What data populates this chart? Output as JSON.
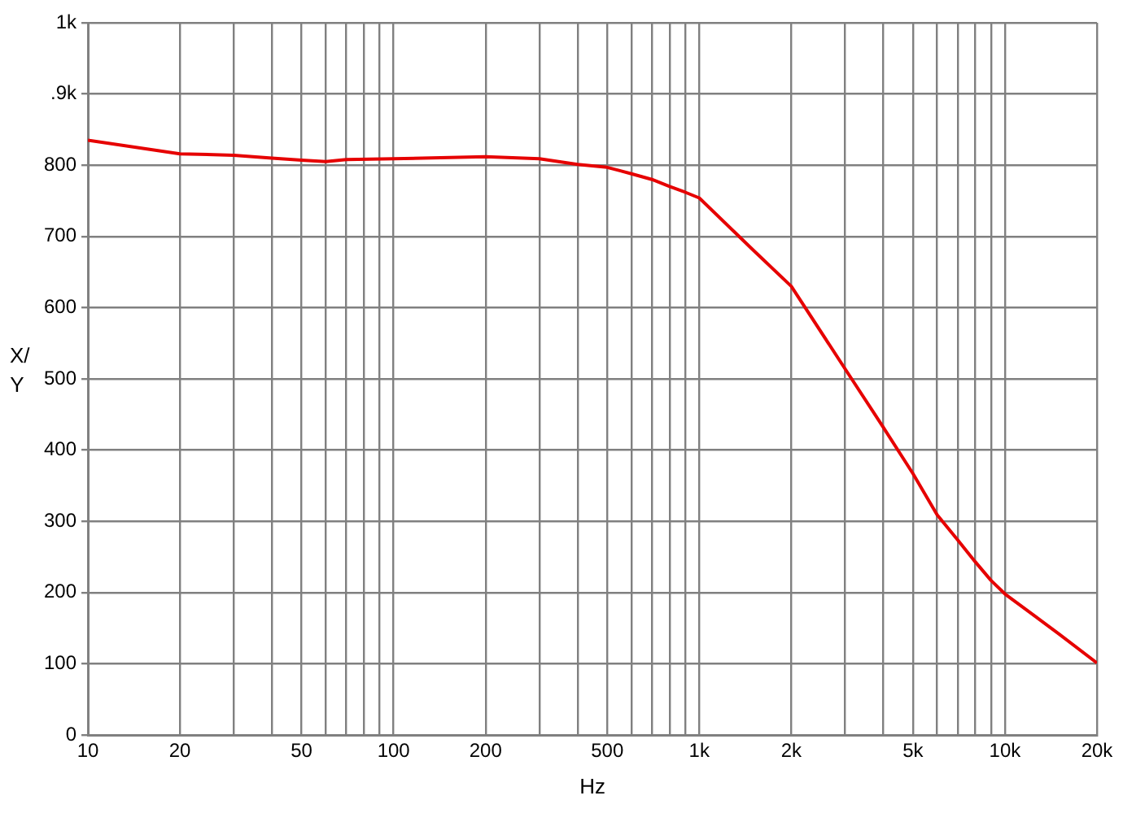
{
  "chart_data": {
    "type": "line",
    "xlabel": "Hz",
    "ylabel": "X/Y",
    "log": "x",
    "x": [
      10,
      20,
      30,
      40,
      50,
      60,
      70,
      100,
      200,
      300,
      400,
      500,
      600,
      700,
      800,
      900,
      1000,
      1500,
      2000,
      3000,
      4000,
      5000,
      6000,
      7000,
      8000,
      9000,
      10000,
      15000,
      20000
    ],
    "series": [
      {
        "color": "#e60000",
        "values": [
          835,
          816,
          814,
          810,
          807,
          805,
          808,
          809,
          812,
          809,
          801,
          797,
          788,
          780,
          770,
          762,
          754,
          681,
          630,
          514,
          432,
          367,
          309,
          274,
          243,
          217,
          198,
          142,
          101
        ]
      }
    ],
    "xlim": [
      10,
      20000
    ],
    "xticks": [
      10,
      20,
      {
        "value": 30,
        "label": null
      },
      {
        "value": 40,
        "label": null
      },
      50,
      {
        "value": 60,
        "label": null
      },
      {
        "value": 70,
        "label": null
      },
      {
        "value": 80,
        "label": null
      },
      {
        "value": 90,
        "label": null
      },
      100,
      200,
      {
        "value": 300,
        "label": null
      },
      {
        "value": 400,
        "label": null
      },
      500,
      {
        "value": 600,
        "label": null
      },
      {
        "value": 700,
        "label": null
      },
      {
        "value": 800,
        "label": null
      },
      {
        "value": 900,
        "label": null
      },
      {
        "value": 1000,
        "label": "1k"
      },
      {
        "value": 2000,
        "label": "2k"
      },
      {
        "value": 3000,
        "label": null
      },
      {
        "value": 4000,
        "label": null
      },
      {
        "value": 5000,
        "label": "5k"
      },
      {
        "value": 6000,
        "label": null
      },
      {
        "value": 7000,
        "label": null
      },
      {
        "value": 8000,
        "label": null
      },
      {
        "value": 9000,
        "label": null
      },
      {
        "value": 10000,
        "label": "10k"
      },
      {
        "value": 20000,
        "label": "20k"
      }
    ],
    "ylim": [
      0,
      1000
    ],
    "yticks": [
      0,
      100,
      200,
      300,
      400,
      500,
      600,
      700,
      800,
      {
        "value": 900,
        "label": ".9k"
      },
      {
        "value": 1000,
        "label": "1k"
      }
    ],
    "grid": true,
    "legend": false,
    "marker": "none",
    "line_style": "solid"
  }
}
